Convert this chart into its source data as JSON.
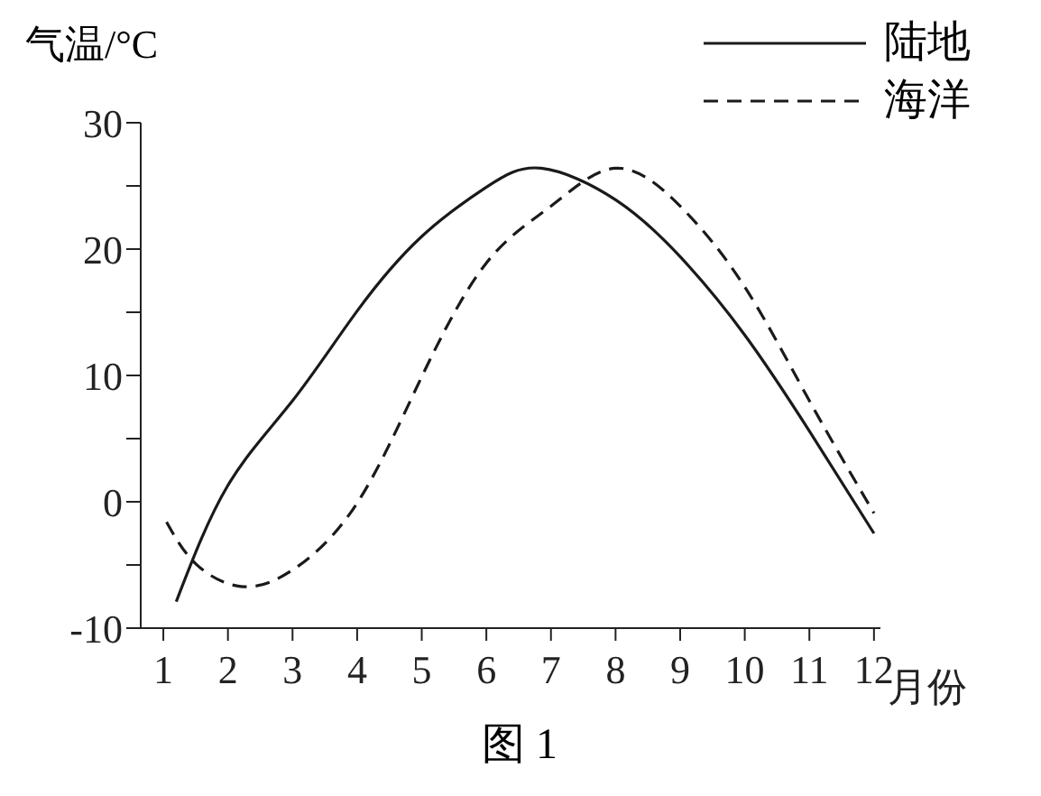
{
  "chart_data": {
    "type": "line",
    "ylabel": "气温/°C",
    "xlabel": "月份",
    "annotations": [
      "图 1"
    ],
    "xlim": [
      0.65,
      12.1
    ],
    "xticks": [
      1,
      2,
      3,
      4,
      5,
      6,
      7,
      8,
      9,
      10,
      11,
      12
    ],
    "ylim": [
      -10,
      30
    ],
    "yticks": [
      -10,
      {
        "value": -5,
        "label": null
      },
      0,
      {
        "value": 5,
        "label": null
      },
      10,
      {
        "value": 15,
        "label": null
      },
      20,
      {
        "value": 25,
        "label": null
      },
      30
    ],
    "grid": false,
    "legend": "top right",
    "marker": "none",
    "series": [
      {
        "name": "陆地",
        "color": "#1a1a1a",
        "line_style": "solid",
        "x": [
          1.2,
          2,
          3,
          4,
          5,
          6,
          6.85,
          8,
          9,
          10,
          11,
          12
        ],
        "values": [
          -7.9,
          1.3,
          8,
          15.1,
          21,
          24.9,
          26.4,
          23.9,
          19.4,
          13.2,
          5.6,
          -2.5
        ]
      },
      {
        "name": "海洋",
        "color": "#1a1a1a",
        "line_style": "dashed",
        "x": [
          1.05,
          1.5,
          2.2,
          3,
          4,
          5,
          6,
          7,
          8,
          9,
          10,
          11,
          12
        ],
        "values": [
          -1.6,
          -4.9,
          -6.7,
          -5.4,
          -0.1,
          9.9,
          18.9,
          23.4,
          26.4,
          23.4,
          17,
          8,
          -0.9
        ]
      }
    ]
  }
}
